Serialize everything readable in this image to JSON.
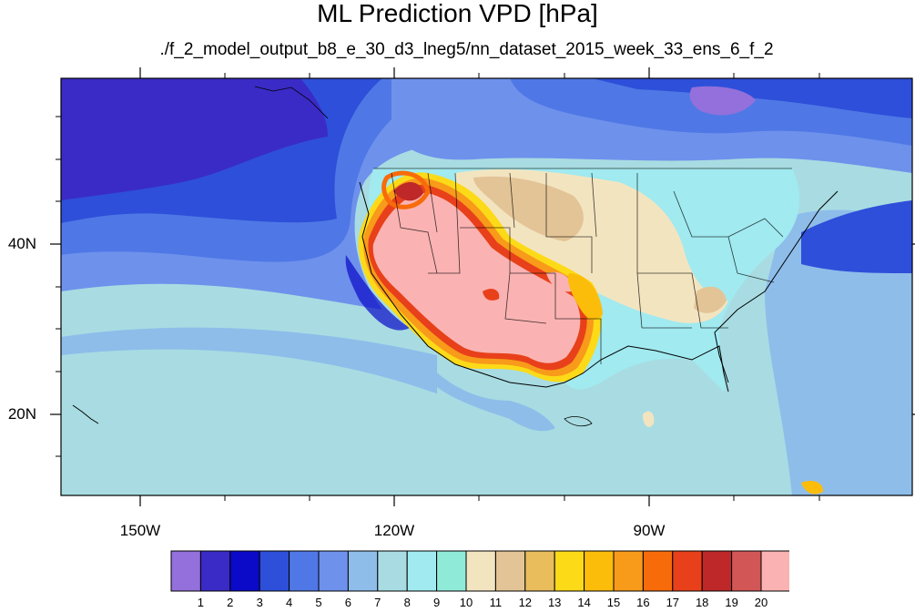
{
  "figure": {
    "title": "ML Prediction VPD [hPa]",
    "subtitle": "./f_2_model_output_b8_e_30_d3_lneg5/nn_dataset_2015_week_33_ens_6_f_2"
  },
  "axes": {
    "lat_labels": [
      {
        "text": "40N",
        "value": 40
      },
      {
        "text": "20N",
        "value": 20
      }
    ],
    "lon_labels": [
      {
        "text": "150W",
        "value": -150
      },
      {
        "text": "120W",
        "value": -120
      },
      {
        "text": "90W",
        "value": -90
      }
    ],
    "lat_range": [
      10,
      59
    ],
    "lon_range": [
      -159,
      -60
    ]
  },
  "colorbar": {
    "colors": [
      "#9370DB",
      "#3A2BC6",
      "#0A0AC8",
      "#2E4FD9",
      "#4F78E6",
      "#6E91EC",
      "#8EBDEA",
      "#A8DCE2",
      "#A0EAF0",
      "#90EAD8",
      "#F3E4C0",
      "#E3C496",
      "#E9BC5C",
      "#FCDA18",
      "#FCBC0A",
      "#F89A1A",
      "#F86B0A",
      "#E8401A",
      "#BE2828",
      "#D25656",
      "#FAB3B2"
    ],
    "labels": [
      "1",
      "2",
      "3",
      "4",
      "5",
      "6",
      "7",
      "8",
      "9",
      "10",
      "11",
      "12",
      "13",
      "14",
      "15",
      "16",
      "17",
      "18",
      "19",
      "20"
    ]
  }
}
